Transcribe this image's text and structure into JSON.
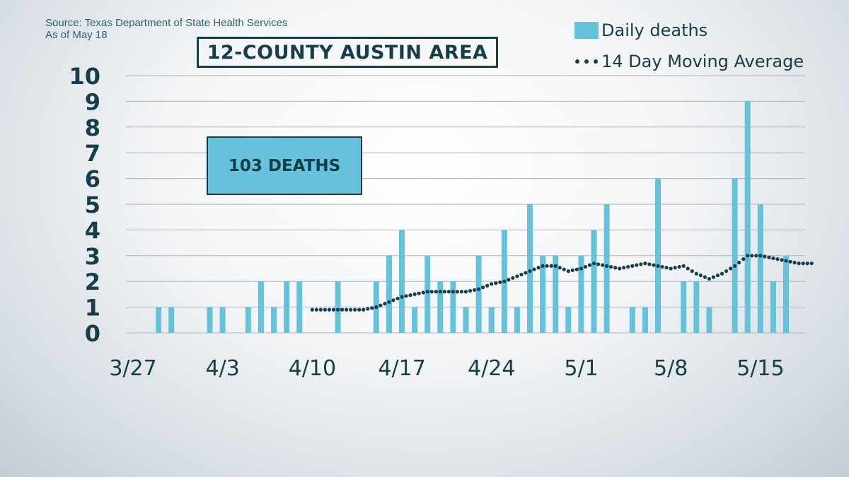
{
  "source": {
    "line1": "Source: Texas Department of State Health Services",
    "line2": "As of May 18"
  },
  "title": "12-COUNTY AUSTIN AREA",
  "callout": "103 DEATHS",
  "legend": {
    "bars": "Daily deaths",
    "line": "14 Day Moving Average"
  },
  "colors": {
    "bar": "#66c1da",
    "line": "#173d48",
    "grid": "#a9b4bc",
    "text": "#173d48"
  },
  "chart_data": {
    "type": "bar",
    "ylim": [
      0,
      10
    ],
    "yticks": [
      "0",
      "1",
      "2",
      "3",
      "4",
      "5",
      "6",
      "7",
      "8",
      "9",
      "10"
    ],
    "grid": true,
    "xtick_labels": [
      "3/27",
      "4/3",
      "4/10",
      "4/17",
      "4/24",
      "5/1",
      "5/8",
      "5/15"
    ],
    "x": [
      "3/27",
      "3/28",
      "3/29",
      "3/30",
      "3/31",
      "4/1",
      "4/2",
      "4/3",
      "4/4",
      "4/5",
      "4/6",
      "4/7",
      "4/8",
      "4/9",
      "4/10",
      "4/11",
      "4/12",
      "4/13",
      "4/14",
      "4/15",
      "4/16",
      "4/17",
      "4/18",
      "4/19",
      "4/20",
      "4/21",
      "4/22",
      "4/23",
      "4/24",
      "4/25",
      "4/26",
      "4/27",
      "4/28",
      "4/29",
      "4/30",
      "5/1",
      "5/2",
      "5/3",
      "5/4",
      "5/5",
      "5/6",
      "5/7",
      "5/8",
      "5/9",
      "5/10",
      "5/11",
      "5/12",
      "5/13",
      "5/14",
      "5/15",
      "5/16",
      "5/17",
      "5/18"
    ],
    "series": [
      {
        "name": "Daily deaths",
        "type": "bar",
        "values": [
          0,
          1,
          1,
          0,
          0,
          1,
          1,
          0,
          1,
          2,
          1,
          2,
          2,
          0,
          0,
          2,
          0,
          0,
          2,
          3,
          4,
          1,
          3,
          2,
          2,
          1,
          3,
          1,
          4,
          1,
          5,
          3,
          3,
          1,
          3,
          4,
          5,
          0,
          1,
          1,
          6,
          0,
          2,
          2,
          1,
          0,
          6,
          9,
          5,
          2,
          3,
          0,
          0
        ]
      },
      {
        "name": "14 Day Moving Average",
        "type": "line",
        "values": [
          null,
          null,
          null,
          null,
          null,
          null,
          null,
          null,
          null,
          null,
          null,
          null,
          null,
          0.9,
          0.9,
          0.9,
          0.9,
          0.9,
          1.0,
          1.2,
          1.4,
          1.5,
          1.6,
          1.6,
          1.6,
          1.6,
          1.7,
          1.9,
          2.0,
          2.2,
          2.4,
          2.6,
          2.6,
          2.4,
          2.5,
          2.7,
          2.6,
          2.5,
          2.6,
          2.7,
          2.6,
          2.5,
          2.6,
          2.3,
          2.1,
          2.3,
          2.6,
          3.0,
          3.0,
          2.9,
          2.8,
          2.7,
          2.7
        ]
      }
    ]
  }
}
